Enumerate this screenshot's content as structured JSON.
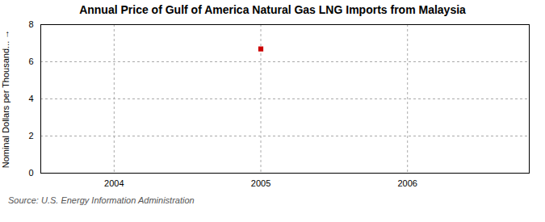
{
  "chart_data": {
    "type": "scatter",
    "title": "Annual Price of Gulf of America Natural Gas LNG Imports from Malaysia",
    "ylabel": "Nominal Dollars per Thousand...",
    "source": "Source: U.S. Energy Information Administration",
    "x": [
      2005
    ],
    "values": [
      6.69
    ],
    "color": "#cc0000",
    "marker": "square",
    "xlim": [
      2003.5,
      2006.83
    ],
    "xticks": [
      2004,
      2005,
      2006
    ],
    "ylim": [
      0,
      8
    ],
    "yticks": [
      0,
      2,
      4,
      6,
      8
    ],
    "grid": true
  }
}
